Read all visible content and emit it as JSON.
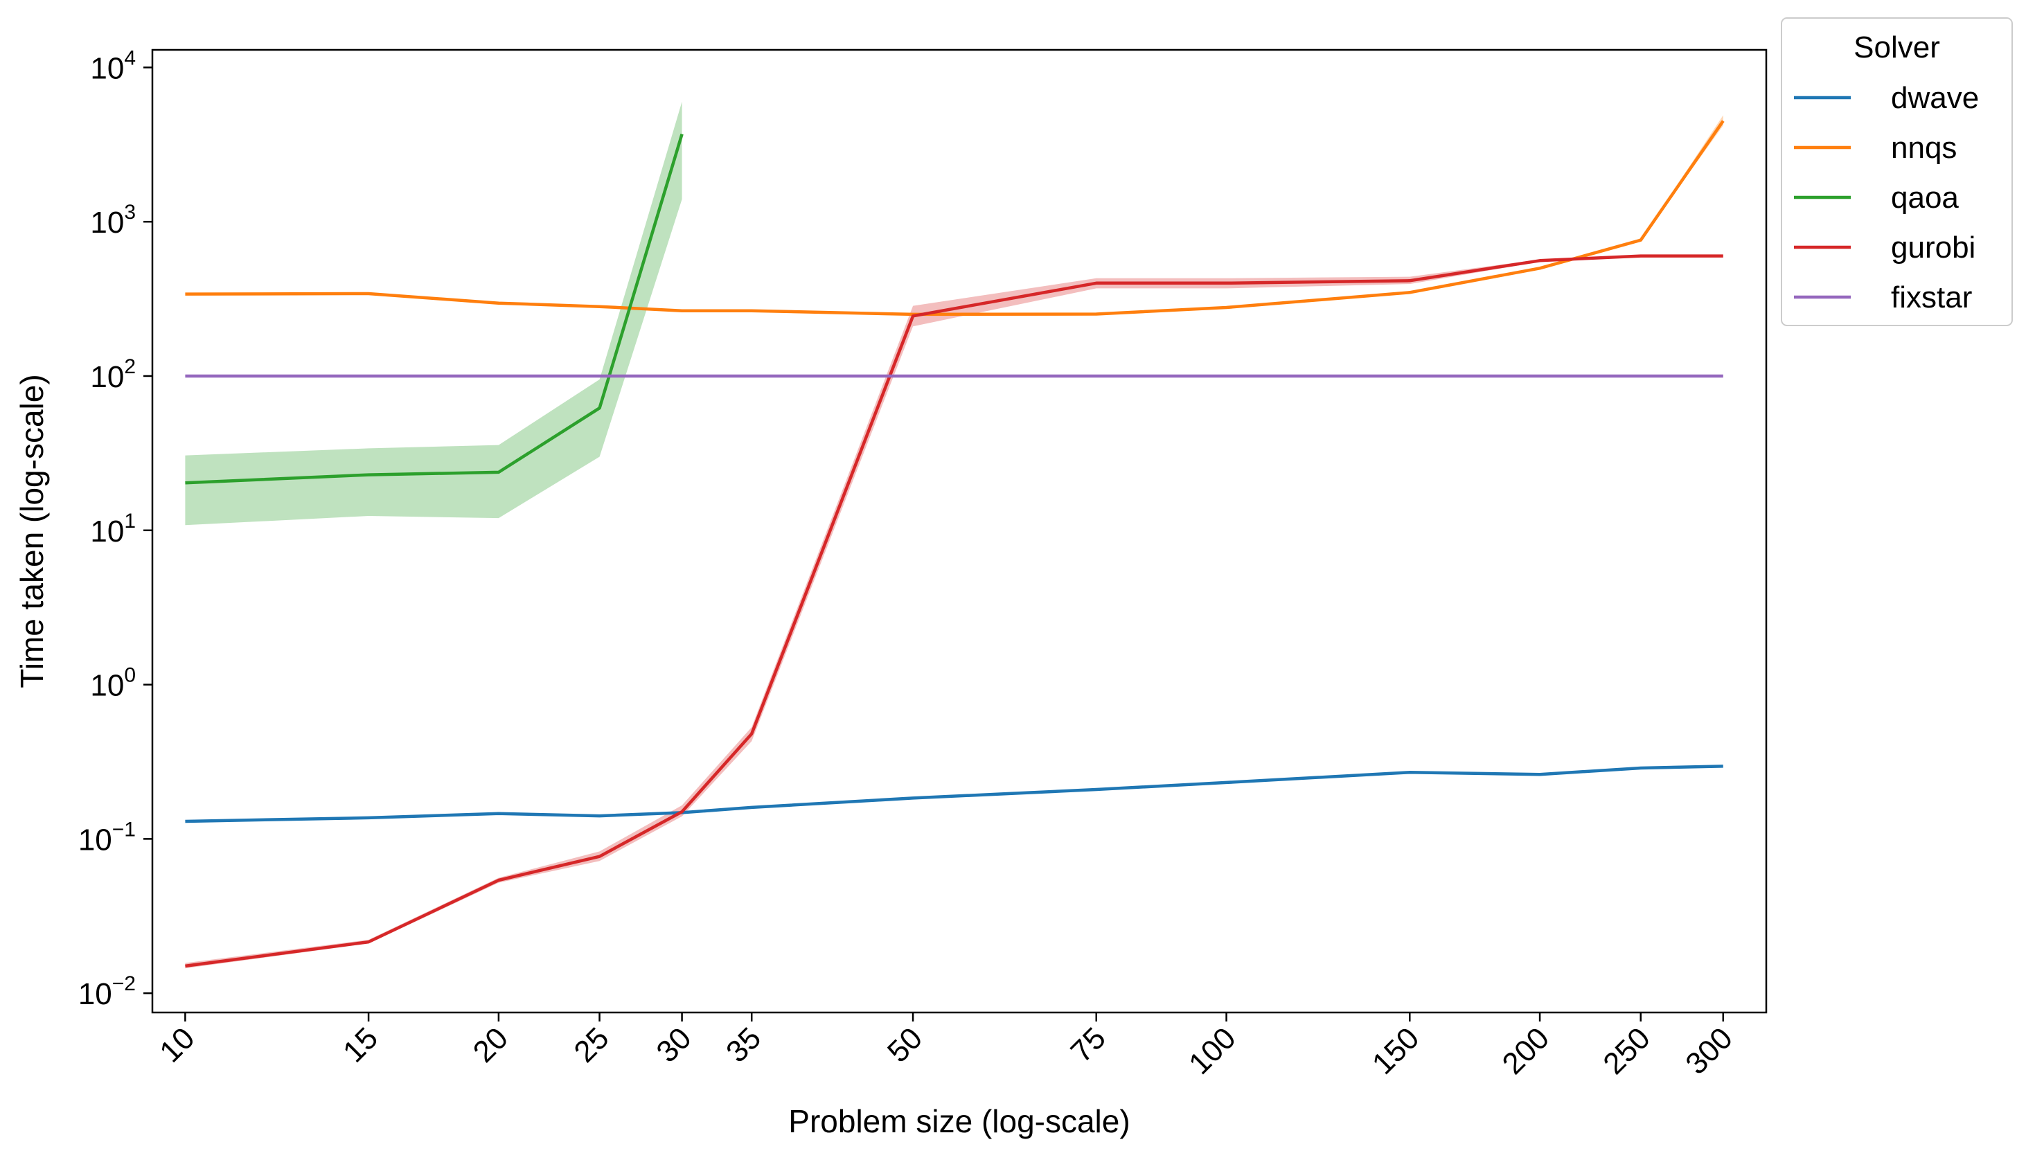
{
  "chart_data": {
    "type": "line",
    "xlabel": "Problem size (log-scale)",
    "ylabel": "Time taken (log-scale)",
    "x_scale": "log",
    "y_scale": "log",
    "xlim": [
      9.3,
      330
    ],
    "ylim": [
      0.0075,
      13000
    ],
    "x_ticks": [
      10,
      15,
      20,
      25,
      30,
      35,
      50,
      75,
      100,
      150,
      200,
      250,
      300
    ],
    "x_tick_labels": [
      "10",
      "15",
      "20",
      "25",
      "30",
      "35",
      "50",
      "75",
      "100",
      "150",
      "200",
      "250",
      "300"
    ],
    "y_ticks": [
      0.01,
      0.1,
      1,
      10,
      100,
      1000,
      10000
    ],
    "y_tick_labels": [
      {
        "base": "10",
        "exp": "−2"
      },
      {
        "base": "10",
        "exp": "−1"
      },
      {
        "base": "10",
        "exp": "0"
      },
      {
        "base": "10",
        "exp": "1"
      },
      {
        "base": "10",
        "exp": "2"
      },
      {
        "base": "10",
        "exp": "3"
      },
      {
        "base": "10",
        "exp": "4"
      }
    ],
    "grid": false,
    "legend": {
      "title": "Solver",
      "placement": "outside-top-right"
    },
    "series": [
      {
        "name": "dwave",
        "color": "#1f77b4",
        "x": [
          10,
          15,
          20,
          25,
          30,
          35,
          50,
          75,
          100,
          150,
          200,
          250,
          300
        ],
        "y": [
          0.13,
          0.137,
          0.146,
          0.141,
          0.148,
          0.16,
          0.184,
          0.209,
          0.232,
          0.27,
          0.262,
          0.288,
          0.296
        ]
      },
      {
        "name": "nnqs",
        "color": "#ff7f0e",
        "x": [
          10,
          15,
          20,
          25,
          30,
          35,
          50,
          75,
          100,
          150,
          200,
          250,
          300
        ],
        "y": [
          340,
          342,
          297,
          282,
          265,
          265,
          251,
          252,
          278,
          348,
          500,
          760,
          4500
        ],
        "band_low": [
          340,
          342,
          297,
          282,
          265,
          265,
          251,
          252,
          278,
          348,
          500,
          760,
          4200
        ],
        "band_high": [
          340,
          342,
          297,
          282,
          265,
          265,
          251,
          252,
          278,
          348,
          500,
          760,
          4900
        ]
      },
      {
        "name": "qaoa",
        "color": "#2ca02c",
        "x": [
          10,
          15,
          20,
          25,
          30
        ],
        "y": [
          20.3,
          22.9,
          23.8,
          62,
          3700
        ],
        "band_low": [
          10.8,
          12.4,
          12.0,
          30,
          1400
        ],
        "band_high": [
          30.6,
          34.0,
          35.7,
          95,
          6000
        ]
      },
      {
        "name": "gurobi",
        "color": "#d62728",
        "x": [
          10,
          15,
          20,
          25,
          30,
          35,
          50,
          75,
          100,
          150,
          200,
          250,
          300
        ],
        "y": [
          0.015,
          0.0215,
          0.054,
          0.077,
          0.15,
          0.48,
          245,
          400,
          400,
          415,
          560,
          600,
          600
        ],
        "band_low": [
          0.0145,
          0.021,
          0.052,
          0.072,
          0.14,
          0.43,
          210,
          370,
          370,
          395,
          550,
          595,
          595
        ],
        "band_high": [
          0.0157,
          0.0222,
          0.056,
          0.083,
          0.165,
          0.53,
          285,
          430,
          430,
          440,
          570,
          605,
          605
        ]
      },
      {
        "name": "fixstar",
        "color": "#9467bd",
        "x": [
          10,
          15,
          20,
          25,
          30,
          35,
          50,
          75,
          100,
          150,
          200,
          250,
          300
        ],
        "y": [
          100,
          100,
          100,
          100,
          100,
          100,
          100,
          100,
          100,
          100,
          100,
          100,
          100
        ]
      }
    ]
  }
}
